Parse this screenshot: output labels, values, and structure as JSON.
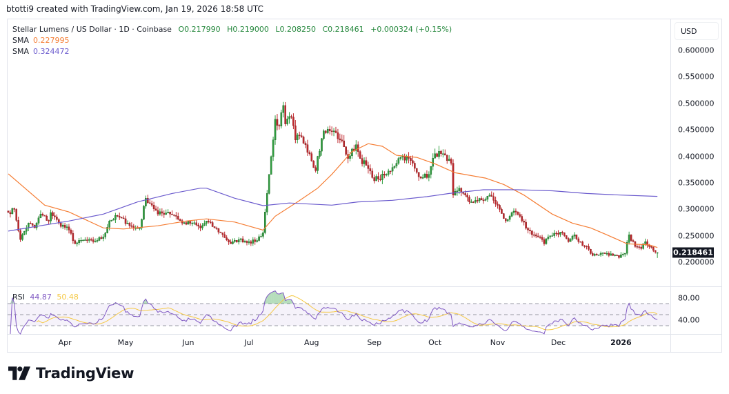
{
  "author_line": "btotti9 created with TradingView.com, Jan 19, 2026 18:58 UTC",
  "legend": {
    "symbol": "Stellar Lumens / US Dollar · 1D · Coinbase",
    "open": "O0.217990",
    "high": "H0.219000",
    "low": "L0.208250",
    "close": "C0.218461",
    "change": "+0.000324 (+0.15%)",
    "sma1_label": "SMA",
    "sma1_value": "0.227995",
    "sma2_label": "SMA",
    "sma2_value": "0.324472"
  },
  "price_axis": {
    "currency": "USD",
    "ticks": [
      "0.600000",
      "0.550000",
      "0.500000",
      "0.450000",
      "0.400000",
      "0.350000",
      "0.300000",
      "0.250000",
      "0.200000"
    ],
    "last_price": "0.218461"
  },
  "rsi": {
    "label": "RSI",
    "value": "44.87",
    "ma_value": "50.48",
    "ticks": [
      "80.00",
      "40.00"
    ]
  },
  "time_axis": [
    {
      "label": "Apr",
      "date": "2025-04-01"
    },
    {
      "label": "May",
      "date": "2025-05-01"
    },
    {
      "label": "Jun",
      "date": "2025-06-01"
    },
    {
      "label": "Jul",
      "date": "2025-07-01"
    },
    {
      "label": "Aug",
      "date": "2025-08-01"
    },
    {
      "label": "Sep",
      "date": "2025-09-01"
    },
    {
      "label": "Oct",
      "date": "2025-10-01"
    },
    {
      "label": "Nov",
      "date": "2025-11-01"
    },
    {
      "label": "Dec",
      "date": "2025-12-01"
    },
    {
      "label": "2026",
      "date": "2026-01-01",
      "bold": true
    }
  ],
  "brand": "TradingView",
  "colors": {
    "up": "#2e9e3f",
    "down": "#c0272d",
    "sma1": "#f57c32",
    "sma2": "#6a5acd",
    "rsi": "#7e57c2",
    "rsi_ma": "#f5c842",
    "legend_green": "#22863a"
  },
  "chart_data": {
    "type": "candlestick",
    "interval": "1D",
    "ylim": [
      0.18,
      0.62
    ],
    "rsi_ylim": [
      0,
      100
    ],
    "rsi_levels": [
      70,
      50,
      30
    ],
    "close_keypoints": [
      [
        "2025-03-04",
        0.294
      ],
      [
        "2025-03-07",
        0.3
      ],
      [
        "2025-03-10",
        0.243
      ],
      [
        "2025-03-14",
        0.274
      ],
      [
        "2025-03-17",
        0.265
      ],
      [
        "2025-03-20",
        0.291
      ],
      [
        "2025-03-24",
        0.278
      ],
      [
        "2025-03-25",
        0.294
      ],
      [
        "2025-03-29",
        0.274
      ],
      [
        "2025-04-03",
        0.261
      ],
      [
        "2025-04-06",
        0.235
      ],
      [
        "2025-04-10",
        0.242
      ],
      [
        "2025-04-15",
        0.239
      ],
      [
        "2025-04-20",
        0.248
      ],
      [
        "2025-04-23",
        0.278
      ],
      [
        "2025-04-27",
        0.287
      ],
      [
        "2025-05-02",
        0.274
      ],
      [
        "2025-05-05",
        0.265
      ],
      [
        "2025-05-08",
        0.265
      ],
      [
        "2025-05-11",
        0.321
      ],
      [
        "2025-05-14",
        0.308
      ],
      [
        "2025-05-17",
        0.291
      ],
      [
        "2025-05-22",
        0.295
      ],
      [
        "2025-05-26",
        0.287
      ],
      [
        "2025-05-29",
        0.274
      ],
      [
        "2025-06-03",
        0.274
      ],
      [
        "2025-06-07",
        0.265
      ],
      [
        "2025-06-10",
        0.278
      ],
      [
        "2025-06-14",
        0.265
      ],
      [
        "2025-06-17",
        0.256
      ],
      [
        "2025-06-22",
        0.235
      ],
      [
        "2025-06-26",
        0.243
      ],
      [
        "2025-07-01",
        0.239
      ],
      [
        "2025-07-04",
        0.239
      ],
      [
        "2025-07-08",
        0.256
      ],
      [
        "2025-07-09",
        0.295
      ],
      [
        "2025-07-11",
        0.366
      ],
      [
        "2025-07-13",
        0.431
      ],
      [
        "2025-07-14",
        0.47
      ],
      [
        "2025-07-16",
        0.457
      ],
      [
        "2025-07-18",
        0.496
      ],
      [
        "2025-07-19",
        0.461
      ],
      [
        "2025-07-22",
        0.474
      ],
      [
        "2025-07-24",
        0.431
      ],
      [
        "2025-07-26",
        0.439
      ],
      [
        "2025-07-29",
        0.422
      ],
      [
        "2025-07-31",
        0.405
      ],
      [
        "2025-08-03",
        0.373
      ],
      [
        "2025-08-04",
        0.4
      ],
      [
        "2025-08-07",
        0.448
      ],
      [
        "2025-08-10",
        0.448
      ],
      [
        "2025-08-12",
        0.448
      ],
      [
        "2025-08-15",
        0.431
      ],
      [
        "2025-08-17",
        0.418
      ],
      [
        "2025-08-19",
        0.396
      ],
      [
        "2025-08-23",
        0.422
      ],
      [
        "2025-08-25",
        0.396
      ],
      [
        "2025-08-28",
        0.383
      ],
      [
        "2025-08-31",
        0.36
      ],
      [
        "2025-09-03",
        0.357
      ],
      [
        "2025-09-07",
        0.366
      ],
      [
        "2025-09-10",
        0.379
      ],
      [
        "2025-09-13",
        0.396
      ],
      [
        "2025-09-15",
        0.4
      ],
      [
        "2025-09-19",
        0.392
      ],
      [
        "2025-09-22",
        0.37
      ],
      [
        "2025-09-25",
        0.36
      ],
      [
        "2025-09-28",
        0.366
      ],
      [
        "2025-10-01",
        0.405
      ],
      [
        "2025-10-04",
        0.405
      ],
      [
        "2025-10-07",
        0.392
      ],
      [
        "2025-10-09",
        0.387
      ],
      [
        "2025-10-10",
        0.327
      ],
      [
        "2025-10-13",
        0.34
      ],
      [
        "2025-10-15",
        0.33
      ],
      [
        "2025-10-18",
        0.314
      ],
      [
        "2025-10-21",
        0.317
      ],
      [
        "2025-10-25",
        0.317
      ],
      [
        "2025-10-28",
        0.327
      ],
      [
        "2025-10-30",
        0.317
      ],
      [
        "2025-11-02",
        0.3
      ],
      [
        "2025-11-05",
        0.278
      ],
      [
        "2025-11-07",
        0.287
      ],
      [
        "2025-11-10",
        0.295
      ],
      [
        "2025-11-13",
        0.278
      ],
      [
        "2025-11-16",
        0.261
      ],
      [
        "2025-11-19",
        0.252
      ],
      [
        "2025-11-23",
        0.243
      ],
      [
        "2025-11-24",
        0.235
      ],
      [
        "2025-11-26",
        0.248
      ],
      [
        "2025-11-29",
        0.255
      ],
      [
        "2025-12-03",
        0.256
      ],
      [
        "2025-12-06",
        0.239
      ],
      [
        "2025-12-09",
        0.252
      ],
      [
        "2025-12-11",
        0.239
      ],
      [
        "2025-12-15",
        0.23
      ],
      [
        "2025-12-18",
        0.213
      ],
      [
        "2025-12-22",
        0.217
      ],
      [
        "2025-12-25",
        0.217
      ],
      [
        "2025-12-28",
        0.213
      ],
      [
        "2025-12-31",
        0.209
      ],
      [
        "2026-01-03",
        0.217
      ],
      [
        "2026-01-05",
        0.252
      ],
      [
        "2026-01-08",
        0.23
      ],
      [
        "2026-01-11",
        0.226
      ],
      [
        "2026-01-13",
        0.239
      ],
      [
        "2026-01-16",
        0.229
      ],
      [
        "2026-01-19",
        0.218461
      ]
    ],
    "last_bar": {
      "date": "2026-01-19",
      "open": 0.21799,
      "high": 0.219,
      "low": 0.20825,
      "close": 0.218461
    },
    "series": [
      {
        "name": "SMA",
        "values": [
          [
            "2025-03-04",
            0.367
          ],
          [
            "2025-03-22",
            0.308
          ],
          [
            "2025-04-03",
            0.295
          ],
          [
            "2025-04-20",
            0.265
          ],
          [
            "2025-04-30",
            0.263
          ],
          [
            "2025-05-17",
            0.269
          ],
          [
            "2025-05-31",
            0.278
          ],
          [
            "2025-06-10",
            0.282
          ],
          [
            "2025-06-24",
            0.276
          ],
          [
            "2025-07-08",
            0.261
          ],
          [
            "2025-07-14",
            0.287
          ],
          [
            "2025-07-25",
            0.314
          ],
          [
            "2025-08-04",
            0.34
          ],
          [
            "2025-08-11",
            0.366
          ],
          [
            "2025-08-21",
            0.409
          ],
          [
            "2025-08-29",
            0.424
          ],
          [
            "2025-09-05",
            0.419
          ],
          [
            "2025-09-12",
            0.402
          ],
          [
            "2025-09-22",
            0.398
          ],
          [
            "2025-10-01",
            0.386
          ],
          [
            "2025-10-11",
            0.369
          ],
          [
            "2025-10-26",
            0.359
          ],
          [
            "2025-11-04",
            0.347
          ],
          [
            "2025-11-14",
            0.327
          ],
          [
            "2025-11-28",
            0.291
          ],
          [
            "2025-12-08",
            0.274
          ],
          [
            "2025-12-17",
            0.265
          ],
          [
            "2025-12-25",
            0.252
          ],
          [
            "2026-01-04",
            0.235
          ],
          [
            "2026-01-15",
            0.233
          ],
          [
            "2026-01-19",
            0.227995
          ]
        ]
      },
      {
        "name": "SMA",
        "values": [
          [
            "2025-03-04",
            0.259
          ],
          [
            "2025-04-03",
            0.278
          ],
          [
            "2025-04-20",
            0.291
          ],
          [
            "2025-05-07",
            0.314
          ],
          [
            "2025-05-24",
            0.33
          ],
          [
            "2025-06-07",
            0.34
          ],
          [
            "2025-06-10",
            0.34
          ],
          [
            "2025-06-24",
            0.321
          ],
          [
            "2025-07-08",
            0.307
          ],
          [
            "2025-07-21",
            0.312
          ],
          [
            "2025-08-11",
            0.308
          ],
          [
            "2025-08-24",
            0.314
          ],
          [
            "2025-09-10",
            0.317
          ],
          [
            "2025-09-27",
            0.324
          ],
          [
            "2025-10-08",
            0.33
          ],
          [
            "2025-10-25",
            0.337
          ],
          [
            "2025-11-11",
            0.337
          ],
          [
            "2025-11-28",
            0.335
          ],
          [
            "2025-12-15",
            0.33
          ],
          [
            "2026-01-01",
            0.327
          ],
          [
            "2026-01-19",
            0.324472
          ]
        ]
      }
    ]
  }
}
